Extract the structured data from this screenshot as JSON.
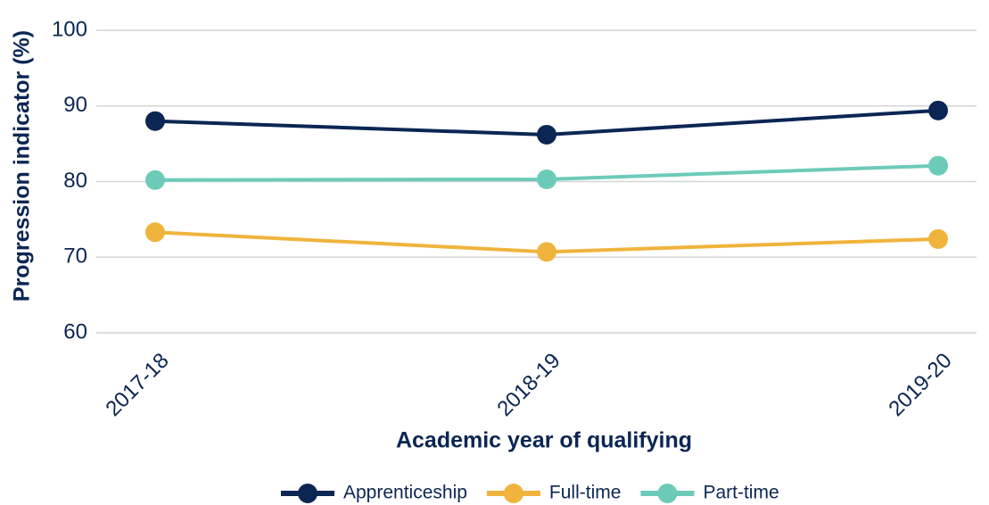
{
  "chart_data": {
    "type": "line",
    "x_label": "Academic year of qualifying",
    "y_label": "Progression indicator (%)",
    "categories": [
      "2017-18",
      "2018-19",
      "2019-20"
    ],
    "series": [
      {
        "name": "Apprenticeship",
        "color": "#0b2653",
        "values": [
          88.0,
          86.2,
          89.4
        ]
      },
      {
        "name": "Full-time",
        "color": "#f0b43c",
        "values": [
          73.3,
          70.7,
          72.4
        ]
      },
      {
        "name": "Part-time",
        "color": "#6ccbb8",
        "values": [
          80.2,
          80.3,
          82.1
        ]
      }
    ],
    "ylim": [
      60,
      100
    ],
    "yticks": [
      60,
      70,
      80,
      90,
      100
    ],
    "grid": true,
    "legend": "bottom"
  }
}
